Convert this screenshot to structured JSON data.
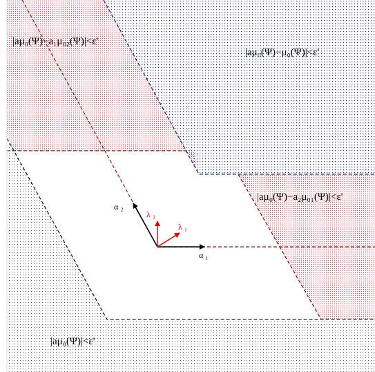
{
  "colors": {
    "background": "#ffffff",
    "blue_dots": "#2b3a8a",
    "red_dots": "#e8485a",
    "black_dots": "#555555",
    "blue_dash": "#1a2a8c",
    "red_dash": "#8b1a1a",
    "black_dash": "#222222",
    "vector_black": "#000000",
    "vector_red": "#e00000"
  },
  "regions": {
    "top_left": "|aμ₀(Ψ)−a₁μ₀₂(Ψ)|<ε'",
    "top_right": "|aμ₀(Ψ)−μ₀(Ψ)|<ε'",
    "right": "|aμ₀(Ψ)−a₂μ₀₁(Ψ)|<ε'",
    "bottom": "|aμ₀(Ψ)|<ε'"
  },
  "vectors": {
    "alpha1": "α ₁",
    "alpha2": "α ₂",
    "lambda1": "λ ₁",
    "lambda2": "λ ₂"
  }
}
